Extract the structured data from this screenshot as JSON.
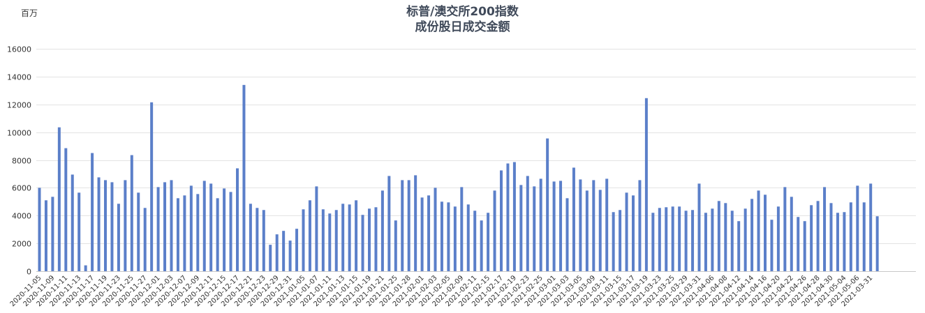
{
  "chart_data": {
    "type": "bar",
    "title_line1": "标普/澳交所200指数",
    "title_line2": "成份股日成交金额",
    "unit_label": "百万",
    "ylim": [
      0,
      16000
    ],
    "yticks": [
      0,
      2000,
      4000,
      6000,
      8000,
      10000,
      12000,
      14000,
      16000
    ],
    "grid": true,
    "color": "#5b7fc9",
    "x_tick_labels": [
      "2020-11-05",
      "2020-11-09",
      "2020-11-11",
      "2020-11-13",
      "2020-11-17",
      "2020-11-19",
      "2020-11-23",
      "2020-11-25",
      "2020-11-27",
      "2020-12-01",
      "2020-12-03",
      "2020-12-07",
      "2020-12-09",
      "2020-12-11",
      "2020-12-15",
      "2020-12-17",
      "2020-12-21",
      "2020-12-23",
      "2020-12-29",
      "2020-12-31",
      "2021-01-05",
      "2021-01-07",
      "2021-01-11",
      "2021-01-13",
      "2021-01-15",
      "2021-01-19",
      "2021-01-21",
      "2021-01-25",
      "2021-01-28",
      "2021-02-01",
      "2021-02-03",
      "2021-02-05",
      "2021-02-09",
      "2021-02-11",
      "2021-02-15",
      "2021-02-17",
      "2021-02-19",
      "2021-02-23",
      "2021-02-25",
      "2021-03-01",
      "2021-03-03",
      "2021-03-05",
      "2021-03-09",
      "2021-03-11",
      "2021-03-15",
      "2021-03-17",
      "2021-03-19",
      "2021-03-23",
      "2021-03-25",
      "2021-03-29",
      "2021-03-31",
      "2021-04-06",
      "2021-04-08",
      "2021-04-12",
      "2021-04-14",
      "2021-04-16",
      "2021-04-20",
      "2021-04-22",
      "2021-04-26",
      "2021-04-28",
      "2021-04-30",
      "2021-05-04",
      "2021-05-06",
      "2021-03-31"
    ],
    "values": [
      6000,
      5100,
      5350,
      10350,
      8850,
      6950,
      5650,
      420,
      8500,
      6750,
      6550,
      6400,
      4850,
      6550,
      8350,
      5650,
      4550,
      12150,
      6050,
      6400,
      6550,
      5250,
      5450,
      6150,
      5550,
      6500,
      6300,
      5250,
      5950,
      5700,
      7400,
      13400,
      4850,
      4550,
      4400,
      1900,
      2650,
      2900,
      2200,
      3050,
      4450,
      5100,
      6100,
      4450,
      4150,
      4400,
      4850,
      4800,
      5100,
      4050,
      4500,
      4600,
      5800,
      6850,
      3650,
      6550,
      6550,
      6900,
      5300,
      5450,
      6000,
      5000,
      4950,
      4650,
      6050,
      4800,
      4350,
      3650,
      4200,
      5800,
      7250,
      7750,
      7850,
      6200,
      6850,
      6100,
      6650,
      9550,
      6450,
      6500,
      5250,
      7450,
      6600,
      5800,
      6550,
      5850,
      6650,
      4250,
      4400,
      5650,
      5450,
      6550,
      12450,
      4200,
      4550,
      4600,
      4650,
      4650,
      4350,
      4400,
      6300,
      4200,
      4500,
      5050,
      4900,
      4350,
      3600,
      4500,
      5200,
      5800,
      5500,
      3700,
      4650,
      6050,
      5350,
      3900,
      3600,
      4750,
      5050,
      6050,
      4900,
      4200,
      4250,
      4950,
      6150,
      4950,
      6300,
      3950
    ]
  }
}
